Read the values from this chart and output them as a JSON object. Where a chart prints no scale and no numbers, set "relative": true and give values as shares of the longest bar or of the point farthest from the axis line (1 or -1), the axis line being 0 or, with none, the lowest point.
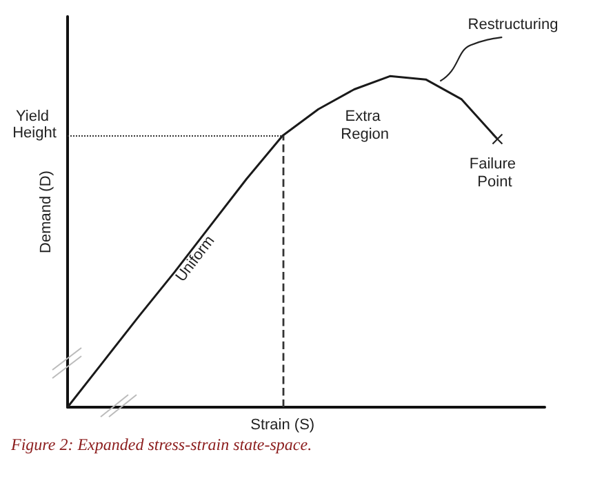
{
  "chart_data": {
    "type": "line",
    "relative": true,
    "xlabel": "Strain (S)",
    "ylabel": "Demand (D)",
    "categories": [
      null,
      null,
      null,
      null,
      null,
      null,
      null,
      null,
      null,
      null,
      null,
      null,
      null
    ],
    "series": [
      {
        "color": "#1a1a1a",
        "values": [
          0,
          0.138,
          0.276,
          0.41,
          0.55,
          0.69,
          0.82,
          0.9,
          0.96,
          1,
          0.99,
          0.93,
          0.81
        ]
      }
    ],
    "ref_lines": [
      {
        "axis": "y",
        "value": 0.82,
        "label": "Yield Height",
        "line_style": "dotted"
      }
    ],
    "annotations": [
      "Uniform",
      "Extra Region",
      "Restructuring",
      "Failure Point",
      "Figure 2: Expanded stress-strain state-space."
    ],
    "grid": false,
    "marker": "none",
    "line_style": "solid"
  }
}
